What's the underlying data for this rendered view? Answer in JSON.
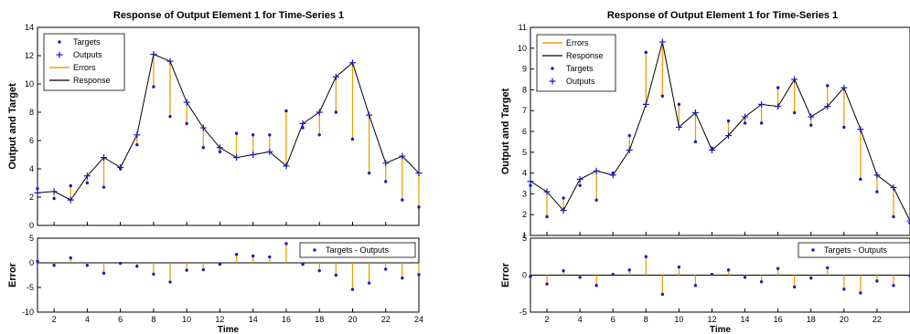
{
  "chart_data": [
    {
      "type": "line",
      "title": "Response of Output Element 1 for Time-Series 1",
      "ylabel": "Output and Target",
      "xlim": [
        1,
        24
      ],
      "ylim": [
        0,
        14
      ],
      "yticks": [
        0,
        2,
        4,
        6,
        8,
        10,
        12,
        14
      ],
      "xticks": [
        2,
        4,
        6,
        8,
        10,
        12,
        14,
        16,
        18,
        20,
        22,
        24
      ],
      "grid": false,
      "legend_position": "top-left",
      "legend": [
        "Targets",
        "Outputs",
        "Errors",
        "Response"
      ],
      "x": [
        1,
        2,
        3,
        4,
        5,
        6,
        7,
        8,
        9,
        10,
        11,
        12,
        13,
        14,
        15,
        16,
        17,
        18,
        19,
        20,
        21,
        22,
        23,
        24
      ],
      "series": [
        {
          "name": "Targets",
          "values": [
            2.6,
            1.9,
            2.8,
            3.0,
            2.7,
            4.0,
            5.7,
            9.8,
            7.7,
            7.2,
            5.5,
            5.2,
            6.5,
            6.4,
            6.4,
            8.1,
            6.9,
            6.4,
            8.0,
            6.1,
            3.7,
            3.1,
            1.8,
            1.3
          ]
        },
        {
          "name": "Outputs",
          "values": [
            2.3,
            2.4,
            1.8,
            3.5,
            4.8,
            4.1,
            6.4,
            12.1,
            11.6,
            8.7,
            6.9,
            5.5,
            4.8,
            5.0,
            5.2,
            4.2,
            7.2,
            8.0,
            10.5,
            11.5,
            7.8,
            4.4,
            4.9,
            3.7
          ]
        }
      ],
      "error_panel": {
        "ylabel": "Error",
        "xlabel": "Time",
        "ylim": [
          -10,
          5
        ],
        "yticks": [
          -10,
          -5,
          0,
          5
        ],
        "legend": "Targets - Outputs",
        "values": [
          0.3,
          -0.5,
          1.0,
          -0.5,
          -2.1,
          -0.1,
          -0.7,
          -2.3,
          -3.9,
          -1.5,
          -1.4,
          -0.3,
          1.7,
          1.4,
          1.2,
          3.9,
          -0.3,
          -1.6,
          -2.5,
          -5.4,
          -4.1,
          -1.3,
          -3.1,
          -2.4
        ]
      }
    },
    {
      "type": "line",
      "title": "Response of Output Element 1 for Time-Series 1",
      "ylabel": "Output and Target",
      "xlim": [
        1,
        24
      ],
      "ylim": [
        1,
        11
      ],
      "yticks": [
        1,
        2,
        3,
        4,
        5,
        6,
        7,
        8,
        9,
        10,
        11
      ],
      "xticks": [
        2,
        4,
        6,
        8,
        10,
        12,
        14,
        16,
        18,
        20,
        22
      ],
      "grid": false,
      "legend_position": "top-left",
      "legend": [
        "Errors",
        "Response",
        "Targets",
        "Outputs"
      ],
      "x": [
        1,
        2,
        3,
        4,
        5,
        6,
        7,
        8,
        9,
        10,
        11,
        12,
        13,
        14,
        15,
        16,
        17,
        18,
        19,
        20,
        21,
        22,
        23,
        24
      ],
      "series": [
        {
          "name": "Targets",
          "values": [
            3.4,
            1.9,
            2.8,
            3.4,
            2.7,
            4.0,
            5.8,
            9.8,
            7.7,
            7.3,
            5.5,
            5.2,
            6.5,
            6.4,
            6.4,
            8.1,
            6.9,
            6.3,
            8.2,
            6.2,
            3.7,
            3.1,
            1.9,
            1.6
          ]
        },
        {
          "name": "Outputs",
          "values": [
            3.6,
            3.1,
            2.2,
            3.7,
            4.1,
            3.9,
            5.1,
            7.3,
            10.3,
            6.2,
            6.9,
            5.1,
            5.8,
            6.7,
            7.3,
            7.2,
            8.5,
            6.7,
            7.2,
            8.1,
            6.1,
            3.9,
            3.3,
            1.7
          ]
        }
      ],
      "error_panel": {
        "ylabel": "Error",
        "xlabel": "Time",
        "ylim": [
          -5,
          5
        ],
        "yticks": [
          -5,
          0,
          5
        ],
        "legend": "Targets - Outputs",
        "values": [
          -0.2,
          -1.2,
          0.6,
          -0.3,
          -1.4,
          0.1,
          0.7,
          2.5,
          -2.6,
          1.1,
          -1.4,
          0.1,
          0.7,
          -0.3,
          -0.9,
          0.9,
          -1.6,
          -0.4,
          1.0,
          -1.9,
          -2.4,
          -0.8,
          -1.4,
          -0.1
        ]
      }
    }
  ],
  "colors": {
    "targets": "#1a1ac8",
    "outputs": "#1a1ac8",
    "errors": "#f0a000",
    "response": "#000000"
  }
}
